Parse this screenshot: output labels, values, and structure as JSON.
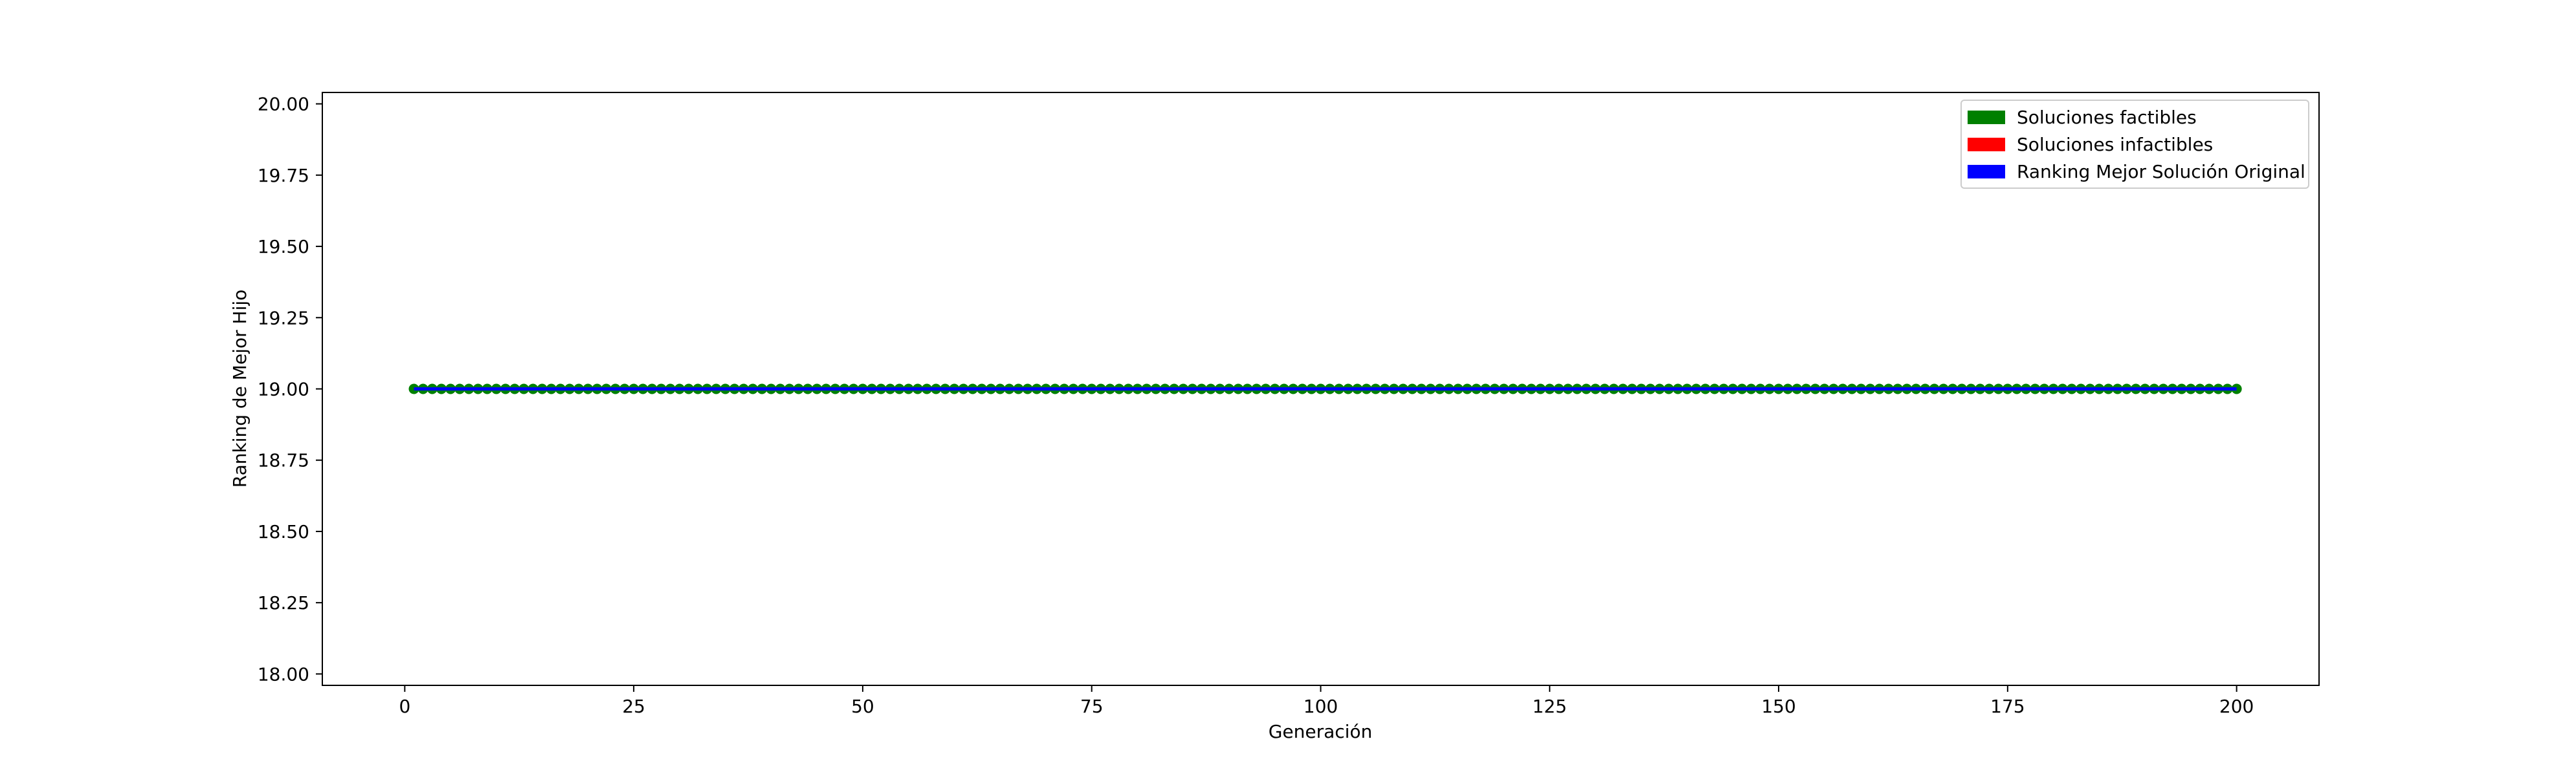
{
  "chart_data": {
    "type": "scatter",
    "title": "",
    "xlabel": "Generación",
    "ylabel": "Ranking de Mejor Hijo",
    "xlim": [
      -9,
      209
    ],
    "ylim": [
      17.96,
      20.04
    ],
    "xticks": [
      0,
      25,
      50,
      75,
      100,
      125,
      150,
      175,
      200
    ],
    "xtick_labels": [
      "0",
      "25",
      "50",
      "75",
      "100",
      "125",
      "150",
      "175",
      "200"
    ],
    "yticks": [
      18.0,
      18.25,
      18.5,
      18.75,
      19.0,
      19.25,
      19.5,
      19.75,
      20.0
    ],
    "ytick_labels": [
      "18.00",
      "18.25",
      "18.50",
      "18.75",
      "19.00",
      "19.25",
      "19.50",
      "19.75",
      "20.00"
    ],
    "grid": false,
    "legend_position": "upper right",
    "legend": [
      {
        "label": "Soluciones factibles",
        "color": "#008000"
      },
      {
        "label": "Soluciones infactibles",
        "color": "#ff0000"
      },
      {
        "label": "Ranking Mejor Solución Original",
        "color": "#0000ff"
      }
    ],
    "series": [
      {
        "name": "Soluciones factibles",
        "color": "#008000",
        "marker": "circle",
        "x_start": 1,
        "x_end": 200,
        "x_step": 1,
        "y": 19.0
      },
      {
        "name": "Ranking Mejor Solución Original",
        "color": "#0000ff",
        "marker": "line",
        "x_start": 1,
        "x_end": 200,
        "y": 19.0
      }
    ]
  }
}
